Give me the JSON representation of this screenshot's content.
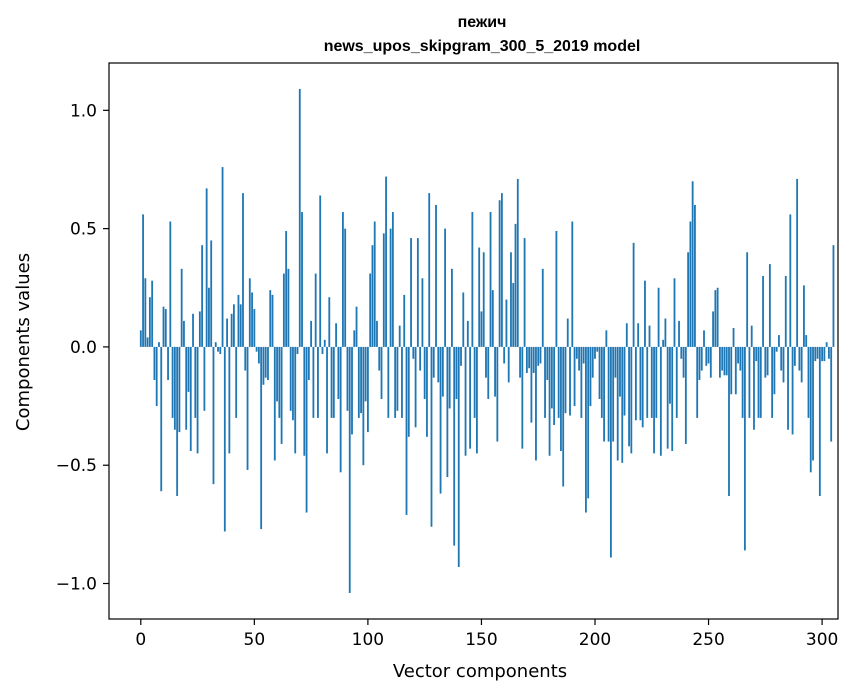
{
  "chart_data": {
    "type": "bar",
    "title": "пежич",
    "subtitle": "news_upos_skipgram_300_5_2019 model",
    "xlabel": "Vector components",
    "ylabel": "Components values",
    "xlim": [
      -14,
      307
    ],
    "ylim": [
      -1.15,
      1.2
    ],
    "xticks": [
      0,
      50,
      100,
      150,
      200,
      250,
      300
    ],
    "yticks": [
      -1.0,
      -0.5,
      0.0,
      0.5,
      1.0
    ],
    "ytick_labels": [
      "−1.0",
      "−0.5",
      "0.0",
      "0.5",
      "1.0"
    ],
    "bar_color": "#1f77b4",
    "grid": false,
    "values": [
      0.07,
      0.56,
      0.29,
      0.04,
      0.21,
      0.28,
      -0.14,
      -0.25,
      0.02,
      -0.61,
      0.17,
      0.16,
      -0.14,
      0.53,
      -0.3,
      -0.35,
      -0.63,
      -0.36,
      0.33,
      0.11,
      -0.35,
      -0.19,
      -0.44,
      0.14,
      -0.3,
      -0.45,
      0.15,
      0.43,
      -0.27,
      0.67,
      0.25,
      0.45,
      -0.58,
      0.02,
      -0.02,
      -0.03,
      0.76,
      -0.78,
      0.12,
      -0.45,
      0.14,
      0.18,
      -0.3,
      0.22,
      0.18,
      0.65,
      -0.1,
      -0.52,
      0.29,
      0.23,
      0.16,
      -0.02,
      -0.07,
      -0.77,
      -0.16,
      -0.13,
      -0.14,
      0.24,
      0.22,
      -0.48,
      -0.23,
      -0.3,
      -0.41,
      0.31,
      0.49,
      0.33,
      -0.27,
      -0.31,
      -0.45,
      -0.03,
      1.09,
      0.57,
      -0.46,
      -0.7,
      -0.14,
      0.11,
      -0.3,
      0.31,
      -0.3,
      0.64,
      -0.03,
      0.03,
      -0.45,
      0.21,
      -0.3,
      -0.3,
      0.1,
      -0.22,
      -0.53,
      0.57,
      0.5,
      -0.27,
      -1.04,
      -0.37,
      0.07,
      0.17,
      -0.3,
      -0.28,
      -0.5,
      -0.23,
      -0.36,
      0.31,
      0.43,
      0.53,
      0.11,
      -0.1,
      -0.22,
      0.48,
      0.72,
      -0.3,
      0.5,
      0.57,
      -0.3,
      -0.27,
      0.09,
      -0.3,
      0.22,
      -0.71,
      -0.38,
      0.46,
      -0.05,
      -0.34,
      0.46,
      -0.1,
      0.29,
      -0.22,
      -0.38,
      0.65,
      -0.76,
      -0.13,
      0.6,
      -0.15,
      -0.62,
      -0.21,
      0.5,
      -0.55,
      -0.26,
      0.33,
      -0.84,
      -0.22,
      -0.93,
      -0.08,
      0.23,
      -0.46,
      0.11,
      -0.43,
      0.57,
      -0.3,
      -0.45,
      0.42,
      0.15,
      0.4,
      -0.13,
      -0.22,
      0.57,
      0.24,
      -0.21,
      -0.4,
      0.62,
      0.65,
      -0.07,
      0.2,
      -0.15,
      0.4,
      0.27,
      0.52,
      0.71,
      -0.13,
      -0.43,
      0.46,
      -0.11,
      -0.09,
      -0.32,
      -0.11,
      -0.48,
      -0.08,
      -0.07,
      0.33,
      -0.3,
      -0.14,
      -0.46,
      -0.26,
      -0.33,
      0.49,
      -0.3,
      -0.44,
      -0.59,
      -0.28,
      0.12,
      -0.29,
      0.53,
      -0.25,
      -0.05,
      -0.1,
      -0.3,
      -0.07,
      -0.7,
      -0.64,
      -0.25,
      -0.13,
      -0.05,
      -0.02,
      -0.22,
      -0.3,
      -0.4,
      0.07,
      -0.4,
      -0.89,
      -0.4,
      -0.13,
      -0.48,
      -0.21,
      -0.49,
      -0.29,
      0.1,
      -0.42,
      -0.45,
      0.44,
      -0.31,
      0.1,
      -0.31,
      -0.34,
      0.28,
      -0.3,
      0.09,
      -0.3,
      -0.45,
      -0.3,
      0.25,
      -0.46,
      0.03,
      0.12,
      -0.43,
      -0.24,
      -0.44,
      0.29,
      -0.3,
      0.11,
      -0.05,
      -0.13,
      -0.41,
      0.4,
      0.53,
      0.7,
      0.6,
      -0.3,
      -0.14,
      -0.1,
      0.07,
      -0.08,
      -0.07,
      -0.13,
      0.15,
      0.24,
      0.25,
      -0.13,
      -0.1,
      -0.12,
      -0.12,
      -0.63,
      -0.2,
      0.08,
      -0.2,
      -0.07,
      -0.1,
      -0.3,
      -0.86,
      0.4,
      -0.3,
      0.09,
      -0.35,
      -0.06,
      -0.3,
      -0.3,
      0.3,
      -0.13,
      -0.12,
      0.35,
      -0.3,
      -0.2,
      -0.02,
      0.05,
      -0.1,
      -0.15,
      0.3,
      -0.35,
      0.56,
      -0.37,
      -0.08,
      0.71,
      -0.1,
      -0.15,
      0.26,
      0.05,
      -0.3,
      -0.53,
      -0.48,
      -0.06,
      -0.05,
      -0.63,
      -0.06,
      -0.06,
      0.02,
      -0.05,
      -0.4,
      0.43
    ]
  }
}
